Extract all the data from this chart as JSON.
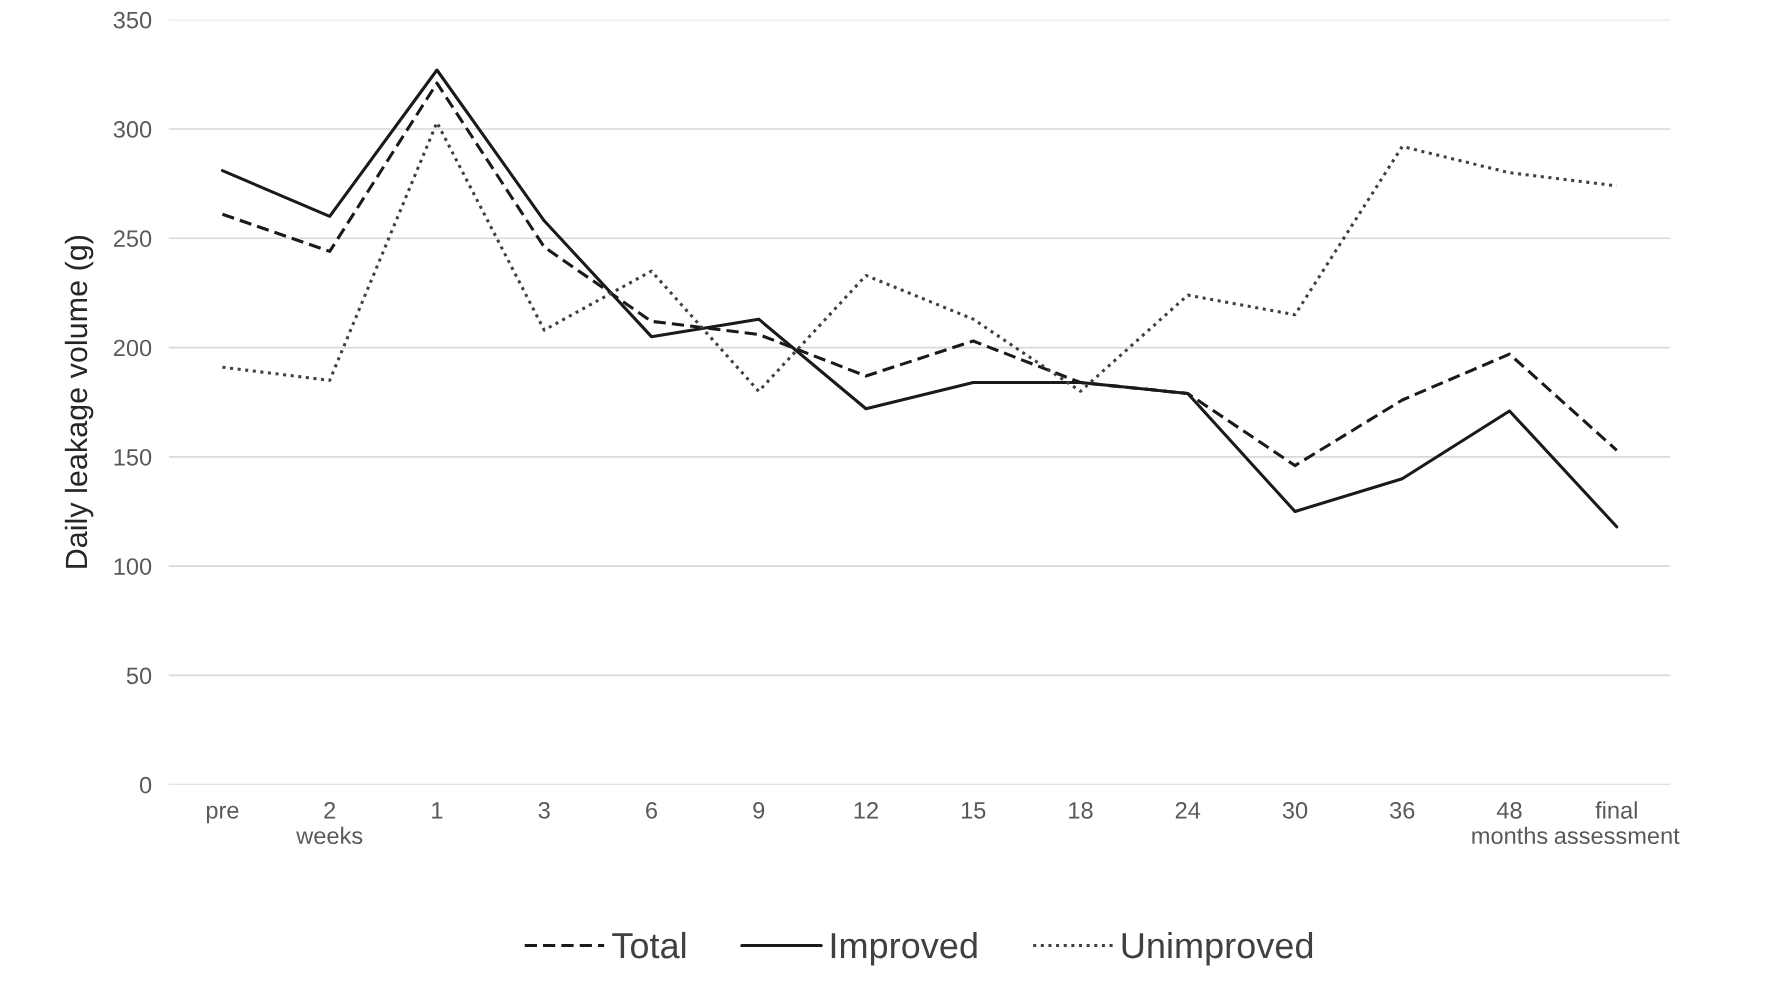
{
  "chart_data": {
    "type": "line",
    "ylabel": "Daily leakage volume (g)",
    "categories": [
      "pre",
      "2\nweeks",
      "1",
      "3",
      "6",
      "9",
      "12",
      "15",
      "18",
      "24",
      "30",
      "36",
      "48\nmonths",
      "final\nassessment"
    ],
    "series": [
      {
        "name": "Total",
        "color": "#1a1a1a",
        "line_style": "dashed",
        "values": [
          261,
          244,
          321,
          246,
          212,
          206,
          187,
          203,
          184,
          179,
          146,
          176,
          197,
          153
        ]
      },
      {
        "name": "Improved",
        "color": "#1a1a1a",
        "line_style": "solid",
        "values": [
          281,
          260,
          327,
          258,
          205,
          213,
          172,
          184,
          184,
          179,
          125,
          140,
          171,
          118
        ]
      },
      {
        "name": "Unimproved",
        "color": "#404040",
        "line_style": "dotted",
        "values": [
          191,
          185,
          303,
          208,
          235,
          180,
          233,
          213,
          180,
          224,
          215,
          292,
          280,
          274
        ]
      }
    ],
    "ylim": [
      0,
      350
    ],
    "yticks": [
      0,
      50,
      100,
      150,
      200,
      250,
      300,
      350
    ],
    "grid": "y",
    "legend": "bottom",
    "marker": "none"
  }
}
